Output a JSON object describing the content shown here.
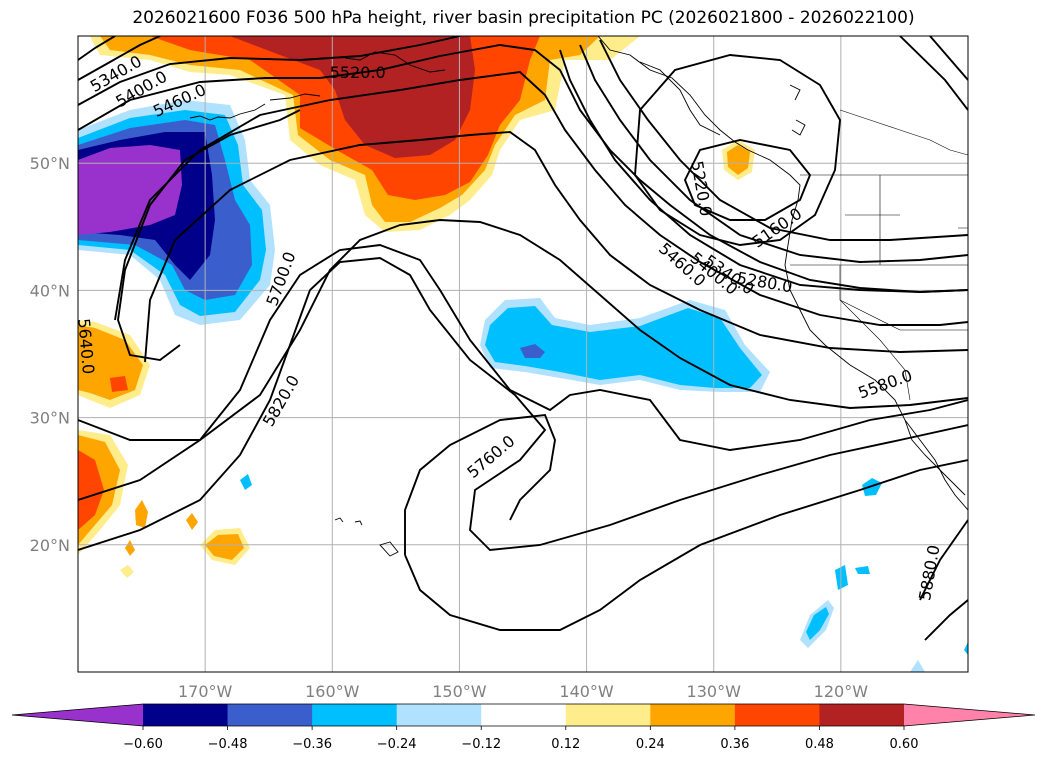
{
  "title": "2026021600 F036 500 hPa height, river basin precipitation PC (2026021800 - 2026022100)",
  "map": {
    "lon_range": [
      -180,
      -110
    ],
    "lat_range": [
      10,
      60
    ],
    "lon_ticks": [
      {
        "lon": -170,
        "label": "170°W"
      },
      {
        "lon": -160,
        "label": "160°W"
      },
      {
        "lon": -150,
        "label": "150°W"
      },
      {
        "lon": -140,
        "label": "140°W"
      },
      {
        "lon": -130,
        "label": "130°W"
      },
      {
        "lon": -120,
        "label": "120°W"
      }
    ],
    "lat_ticks": [
      {
        "lat": 50,
        "label": "50°N"
      },
      {
        "lat": 40,
        "label": "40°N"
      },
      {
        "lat": 30,
        "label": "30°N"
      },
      {
        "lat": 20,
        "label": "20°N"
      }
    ],
    "gridlines": true
  },
  "contour_labels": [
    {
      "text": "5340.0",
      "lon": -177.0,
      "lat": 57.0,
      "rot": -30
    },
    {
      "text": "5400.0",
      "lon": -175.0,
      "lat": 55.8,
      "rot": -30
    },
    {
      "text": "5460.0",
      "lon": -172.0,
      "lat": 54.9,
      "rot": -25
    },
    {
      "text": "5520.0",
      "lon": -158.0,
      "lat": 57.1,
      "rot": 0
    },
    {
      "text": "5220.0",
      "lon": -131.0,
      "lat": 48.0,
      "rot": 80
    },
    {
      "text": "5160.0",
      "lon": -125.0,
      "lat": 44.9,
      "rot": -35
    },
    {
      "text": "5280.0",
      "lon": -126.0,
      "lat": 40.6,
      "rot": 10
    },
    {
      "text": "5340.0",
      "lon": -128.8,
      "lat": 41.2,
      "rot": 35
    },
    {
      "text": "5400.0",
      "lon": -130.0,
      "lat": 41.3,
      "rot": 40
    },
    {
      "text": "5460.0",
      "lon": -132.5,
      "lat": 42.0,
      "rot": 42
    },
    {
      "text": "5700.0",
      "lon": -164.0,
      "lat": 40.9,
      "rot": -70
    },
    {
      "text": "5640.0",
      "lon": -179.4,
      "lat": 35.6,
      "rot": 85
    },
    {
      "text": "5820.0",
      "lon": -164.0,
      "lat": 31.3,
      "rot": -60
    },
    {
      "text": "5760.0",
      "lon": -147.5,
      "lat": 26.9,
      "rot": -40
    },
    {
      "text": "5580.0",
      "lon": -116.5,
      "lat": 32.6,
      "rot": -20
    },
    {
      "text": "5880.0",
      "lon": -113.0,
      "lat": 17.8,
      "rot": -80
    }
  ],
  "colorbar": {
    "ticks": [
      "−0.60",
      "−0.48",
      "−0.36",
      "−0.24",
      "−0.12",
      "0.12",
      "0.24",
      "0.36",
      "0.48",
      "0.60"
    ],
    "colors": [
      "#9932cc",
      "#00008b",
      "#3a5fcd",
      "#00bfff",
      "#b0e2ff",
      "#ffffff",
      "#ffec8b",
      "#ffa500",
      "#ff4500",
      "#b22222",
      "#ff82ab"
    ]
  }
}
